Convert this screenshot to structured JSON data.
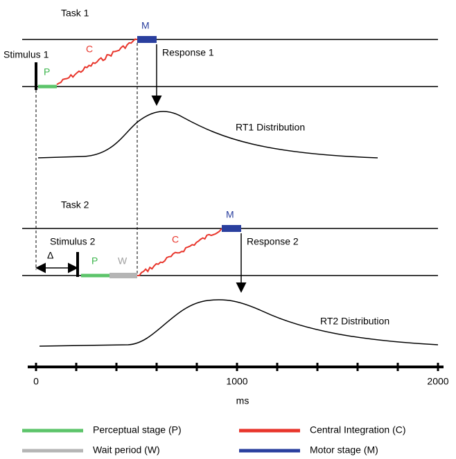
{
  "task1": {
    "title": "Task 1",
    "stimulus": "Stimulus 1",
    "perceptual": "P",
    "central": "C",
    "motor": "M",
    "response": "Response 1",
    "distribution": "RT1 Distribution"
  },
  "task2": {
    "title": "Task 2",
    "stimulus": "Stimulus 2",
    "delta": "Δ",
    "perceptual": "P",
    "wait": "W",
    "central": "C",
    "motor": "M",
    "response": "Response 2",
    "distribution": "RT2 Distribution"
  },
  "axis": {
    "range": [
      0,
      2000
    ],
    "ticks": [
      0,
      1000,
      2000
    ],
    "label": "ms"
  },
  "legend": [
    {
      "name": "Perceptual stage (P)",
      "color": "#5cc46a"
    },
    {
      "name": "Central Integration (C)",
      "color": "#e8352b"
    },
    {
      "name": "Wait period (W)",
      "color": "#b5b5b5"
    },
    {
      "name": "Motor stage (M)",
      "color": "#2a3f9e"
    }
  ]
}
